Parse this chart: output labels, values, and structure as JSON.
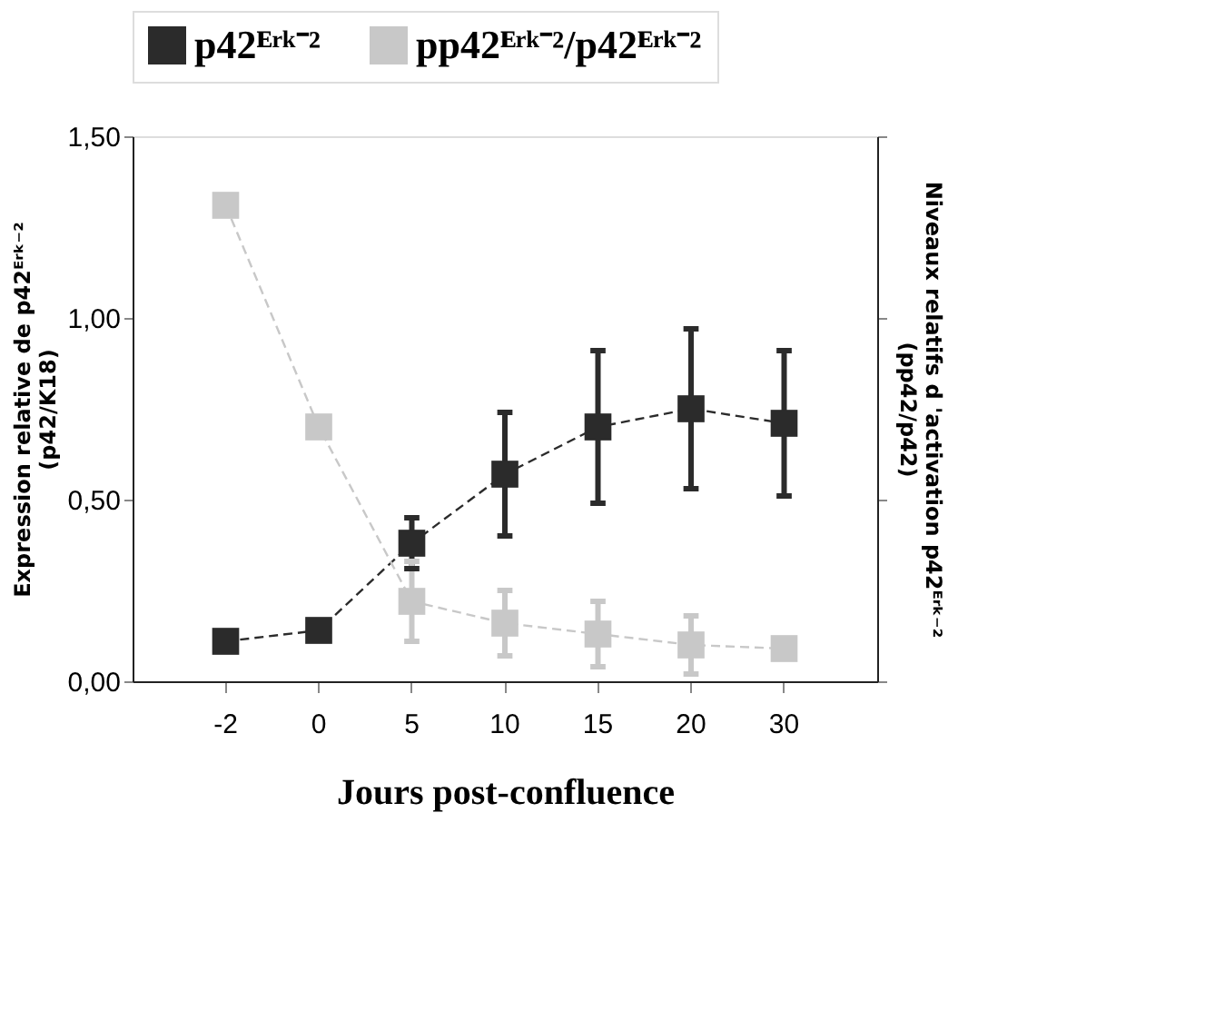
{
  "chart_data": {
    "type": "line",
    "xlabel": "Jours post-confluence",
    "ylabel": "Expression relative de p42ᴱʳᵏ⁻²\n(p42/K18)",
    "y2label": "Niveaux relatifs d 'activation p42ᴱʳᵏ⁻²\n(pp42/p42)",
    "categories": [
      "-2",
      "0",
      "5",
      "10",
      "15",
      "20",
      "30"
    ],
    "ylim": [
      0,
      1.5
    ],
    "yticks": [
      {
        "value": 0,
        "label": "0,00"
      },
      {
        "value": 0.5,
        "label": "0,50"
      },
      {
        "value": 1.0,
        "label": "1,00"
      },
      {
        "value": 1.5,
        "label": "1,50"
      }
    ],
    "marker": "square",
    "line_style": "dashed",
    "legend": "top",
    "grid": false,
    "series": [
      {
        "name": "p42ᴱʳᵏ⁻²",
        "color": "#2b2b2b",
        "values": [
          0.11,
          0.14,
          0.38,
          0.57,
          0.7,
          0.75,
          0.71
        ],
        "errors": [
          null,
          null,
          0.07,
          0.17,
          0.21,
          0.22,
          0.2
        ]
      },
      {
        "name": "pp42ᴱʳᵏ⁻²/p42ᴱʳᵏ⁻²",
        "color": "#c8c8c8",
        "values": [
          1.31,
          0.7,
          0.22,
          0.16,
          0.13,
          0.1,
          0.09
        ],
        "errors": [
          null,
          null,
          0.11,
          0.09,
          0.09,
          0.08,
          null
        ]
      }
    ]
  }
}
